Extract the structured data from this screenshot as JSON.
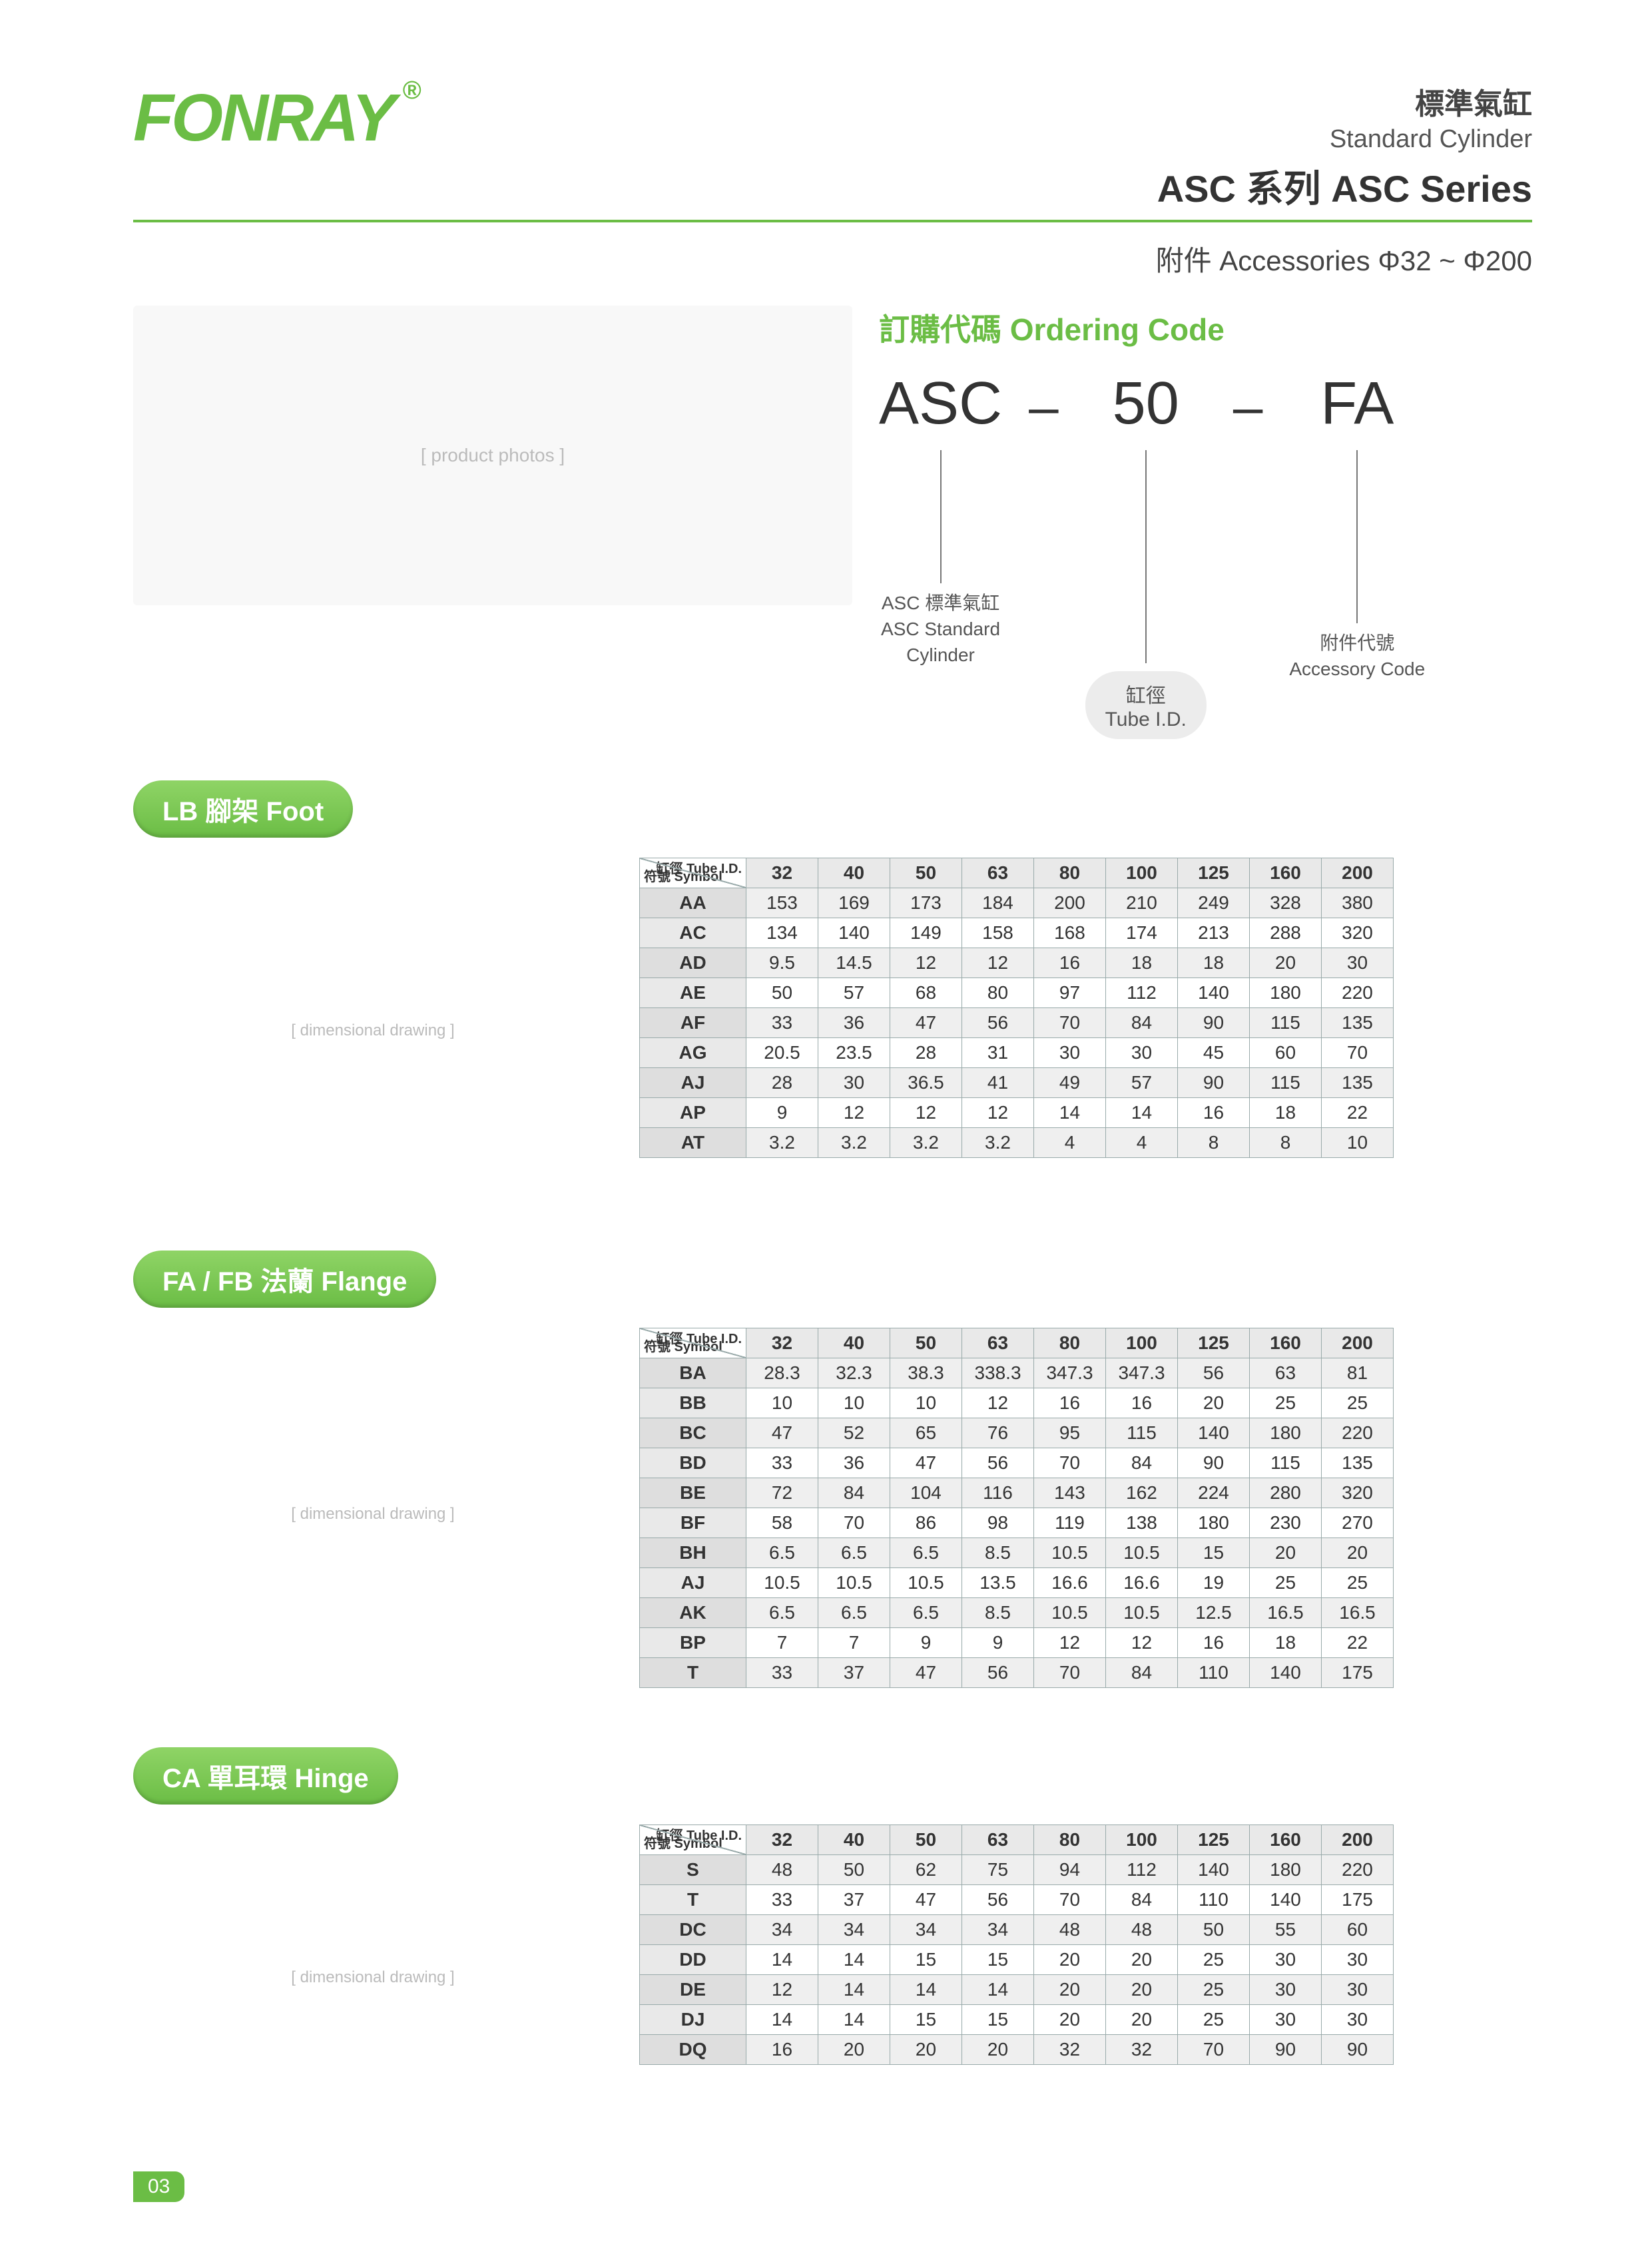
{
  "brand": "FONRAY",
  "header": {
    "zh": "標準氣缸",
    "en": "Standard  Cylinder",
    "series": "ASC 系列 ASC Series"
  },
  "subtitle": "附件  Accessories   Φ32  ~  Φ200",
  "ordering": {
    "title": "訂購代碼 Ordering Code",
    "seg1": "ASC",
    "seg2": "50",
    "seg3": "FA",
    "dash": "–",
    "desc1_zh": "ASC 標準氣缸",
    "desc1_en1": "ASC Standard",
    "desc1_en2": "Cylinder",
    "bubble2_zh": "缸徑",
    "bubble2_en": "Tube I.D.",
    "desc3_zh": "附件代號",
    "desc3_en": "Accessory Code"
  },
  "tables_header": {
    "corner_top": "缸徑 Tube I.D.",
    "corner_bottom": "符號 Symbol"
  },
  "sizes": [
    "32",
    "40",
    "50",
    "63",
    "80",
    "100",
    "125",
    "160",
    "200"
  ],
  "sections": {
    "lb": {
      "title": "LB 腳架 Foot",
      "diag_w": 720,
      "diag_h": 520,
      "rows": [
        {
          "sym": "AA",
          "vals": [
            "153",
            "169",
            "173",
            "184",
            "200",
            "210",
            "249",
            "328",
            "380"
          ]
        },
        {
          "sym": "AC",
          "vals": [
            "134",
            "140",
            "149",
            "158",
            "168",
            "174",
            "213",
            "288",
            "320"
          ]
        },
        {
          "sym": "AD",
          "vals": [
            "9.5",
            "14.5",
            "12",
            "12",
            "16",
            "18",
            "18",
            "20",
            "30"
          ]
        },
        {
          "sym": "AE",
          "vals": [
            "50",
            "57",
            "68",
            "80",
            "97",
            "112",
            "140",
            "180",
            "220"
          ]
        },
        {
          "sym": "AF",
          "vals": [
            "33",
            "36",
            "47",
            "56",
            "70",
            "84",
            "90",
            "115",
            "135"
          ]
        },
        {
          "sym": "AG",
          "vals": [
            "20.5",
            "23.5",
            "28",
            "31",
            "30",
            "30",
            "45",
            "60",
            "70"
          ]
        },
        {
          "sym": "AJ",
          "vals": [
            "28",
            "30",
            "36.5",
            "41",
            "49",
            "57",
            "90",
            "115",
            "135"
          ]
        },
        {
          "sym": "AP",
          "vals": [
            "9",
            "12",
            "12",
            "12",
            "14",
            "14",
            "16",
            "18",
            "22"
          ]
        },
        {
          "sym": "AT",
          "vals": [
            "3.2",
            "3.2",
            "3.2",
            "3.2",
            "4",
            "4",
            "8",
            "8",
            "10"
          ]
        }
      ]
    },
    "fa": {
      "title": "FA / FB 法蘭 Flange",
      "diag_w": 720,
      "diag_h": 560,
      "rows": [
        {
          "sym": "BA",
          "vals": [
            "28.3",
            "32.3",
            "38.3",
            "338.3",
            "347.3",
            "347.3",
            "56",
            "63",
            "81"
          ]
        },
        {
          "sym": "BB",
          "vals": [
            "10",
            "10",
            "10",
            "12",
            "16",
            "16",
            "20",
            "25",
            "25"
          ]
        },
        {
          "sym": "BC",
          "vals": [
            "47",
            "52",
            "65",
            "76",
            "95",
            "115",
            "140",
            "180",
            "220"
          ]
        },
        {
          "sym": "BD",
          "vals": [
            "33",
            "36",
            "47",
            "56",
            "70",
            "84",
            "90",
            "115",
            "135"
          ]
        },
        {
          "sym": "BE",
          "vals": [
            "72",
            "84",
            "104",
            "116",
            "143",
            "162",
            "224",
            "280",
            "320"
          ]
        },
        {
          "sym": "BF",
          "vals": [
            "58",
            "70",
            "86",
            "98",
            "119",
            "138",
            "180",
            "230",
            "270"
          ]
        },
        {
          "sym": "BH",
          "vals": [
            "6.5",
            "6.5",
            "6.5",
            "8.5",
            "10.5",
            "10.5",
            "15",
            "20",
            "20"
          ]
        },
        {
          "sym": "AJ",
          "vals": [
            "10.5",
            "10.5",
            "10.5",
            "13.5",
            "16.6",
            "16.6",
            "19",
            "25",
            "25"
          ]
        },
        {
          "sym": "AK",
          "vals": [
            "6.5",
            "6.5",
            "6.5",
            "8.5",
            "10.5",
            "10.5",
            "12.5",
            "16.5",
            "16.5"
          ]
        },
        {
          "sym": "BP",
          "vals": [
            "7",
            "7",
            "9",
            "9",
            "12",
            "12",
            "16",
            "18",
            "22"
          ]
        },
        {
          "sym": "T",
          "vals": [
            "33",
            "37",
            "47",
            "56",
            "70",
            "84",
            "110",
            "140",
            "175"
          ]
        }
      ]
    },
    "ca": {
      "title": "CA  單耳環 Hinge",
      "diag_w": 720,
      "diag_h": 460,
      "rows": [
        {
          "sym": "S",
          "vals": [
            "48",
            "50",
            "62",
            "75",
            "94",
            "112",
            "140",
            "180",
            "220"
          ]
        },
        {
          "sym": "T",
          "vals": [
            "33",
            "37",
            "47",
            "56",
            "70",
            "84",
            "110",
            "140",
            "175"
          ]
        },
        {
          "sym": "DC",
          "vals": [
            "34",
            "34",
            "34",
            "34",
            "48",
            "48",
            "50",
            "55",
            "60"
          ]
        },
        {
          "sym": "DD",
          "vals": [
            "14",
            "14",
            "15",
            "15",
            "20",
            "20",
            "25",
            "30",
            "30"
          ]
        },
        {
          "sym": "DE",
          "vals": [
            "12",
            "14",
            "14",
            "14",
            "20",
            "20",
            "25",
            "30",
            "30"
          ]
        },
        {
          "sym": "DJ",
          "vals": [
            "14",
            "14",
            "15",
            "15",
            "20",
            "20",
            "25",
            "30",
            "30"
          ]
        },
        {
          "sym": "DQ",
          "vals": [
            "16",
            "20",
            "20",
            "20",
            "32",
            "32",
            "70",
            "90",
            "90"
          ]
        }
      ]
    }
  },
  "page_number": "03",
  "colors": {
    "accent": "#6bbd45",
    "grid": "#9aa",
    "th_bg": "#e9e9e9"
  }
}
